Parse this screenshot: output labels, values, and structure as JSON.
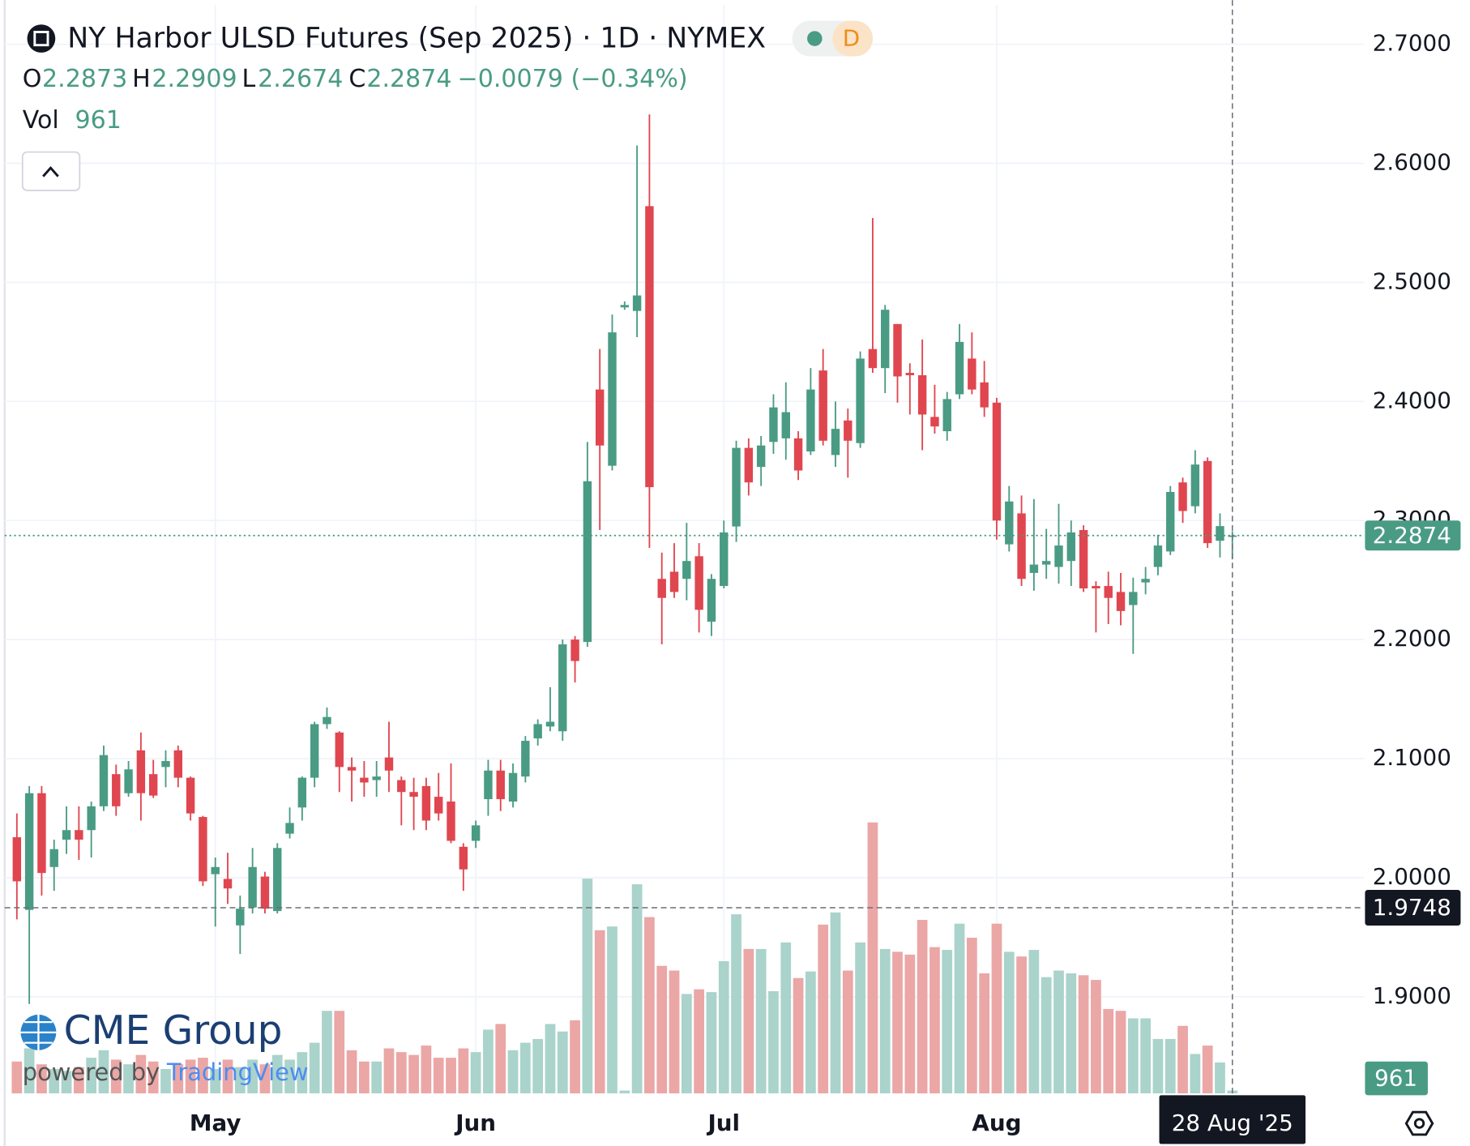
{
  "chart_data": {
    "type": "candlestick",
    "legend": {
      "symbol": "NY Harbor ULSD Futures (Sep 2025) · 1D · NYMEX",
      "interval_badge": "D",
      "o": "O",
      "h": "H",
      "l": "L",
      "c": "C",
      "change": "−0.0079 (−0.34%)",
      "vol": "Vol"
    },
    "branding": {
      "name": "CME Group",
      "powered": "powered by",
      "platform": "TradingView"
    },
    "categories": [
      null,
      null,
      null,
      null,
      null,
      null,
      null,
      null,
      null,
      null,
      null,
      null,
      null,
      null,
      null,
      null,
      "May",
      null,
      null,
      null,
      null,
      null,
      null,
      null,
      null,
      null,
      null,
      null,
      null,
      null,
      null,
      null,
      null,
      null,
      null,
      null,
      null,
      "Jun",
      null,
      null,
      null,
      null,
      null,
      null,
      null,
      null,
      null,
      null,
      null,
      null,
      null,
      null,
      null,
      null,
      null,
      null,
      null,
      "Jul",
      null,
      null,
      null,
      null,
      null,
      null,
      null,
      null,
      null,
      null,
      null,
      null,
      null,
      null,
      null,
      null,
      null,
      null,
      null,
      null,
      null,
      "Aug",
      null,
      null,
      null,
      null,
      null,
      null,
      null,
      null,
      null,
      null,
      null,
      null,
      null,
      null,
      null,
      null,
      null,
      null,
      null
    ],
    "open": [
      2.034,
      1.973,
      2.071,
      2.009,
      2.032,
      2.04,
      2.04,
      2.06,
      2.087,
      2.071,
      2.107,
      2.087,
      2.093,
      2.107,
      2.084,
      2.051,
      2.003,
      1.999,
      1.96,
      1.975,
      2.001,
      1.972,
      2.037,
      2.059,
      2.084,
      2.129,
      2.122,
      2.093,
      2.084,
      2.082,
      2.101,
      2.082,
      2.072,
      2.077,
      2.068,
      2.064,
      2.026,
      2.031,
      2.066,
      2.09,
      2.064,
      2.085,
      2.117,
      2.127,
      2.123,
      2.2,
      2.198,
      2.41,
      2.346,
      2.479,
      2.476,
      2.564,
      2.251,
      2.257,
      2.251,
      2.27,
      2.215,
      2.245,
      2.295,
      2.361,
      2.345,
      2.366,
      2.369,
      2.369,
      2.358,
      2.426,
      2.355,
      2.384,
      2.365,
      2.444,
      2.428,
      2.465,
      2.424,
      2.422,
      2.387,
      2.375,
      2.406,
      2.436,
      2.416,
      2.399,
      2.28,
      2.306,
      2.256,
      2.263,
      2.261,
      2.266,
      2.292,
      2.245,
      2.245,
      2.24,
      2.229,
      2.248,
      2.261,
      2.274,
      2.332,
      2.312,
      2.35,
      2.283,
      2.2873
    ],
    "high": [
      2.054,
      2.077,
      2.077,
      2.032,
      2.06,
      2.06,
      2.064,
      2.111,
      2.095,
      2.098,
      2.122,
      2.099,
      2.107,
      2.111,
      2.085,
      2.052,
      2.017,
      2.021,
      1.985,
      2.025,
      2.005,
      2.029,
      2.059,
      2.085,
      2.131,
      2.143,
      2.123,
      2.101,
      2.098,
      2.098,
      2.131,
      2.085,
      2.084,
      2.084,
      2.088,
      2.096,
      2.029,
      2.048,
      2.099,
      2.099,
      2.096,
      2.119,
      2.133,
      2.16,
      2.2,
      2.203,
      2.366,
      2.444,
      2.473,
      2.484,
      2.615,
      2.641,
      2.273,
      2.281,
      2.298,
      2.281,
      2.255,
      2.3,
      2.367,
      2.369,
      2.371,
      2.406,
      2.416,
      2.375,
      2.428,
      2.444,
      2.4,
      2.394,
      2.442,
      2.554,
      2.481,
      2.465,
      2.432,
      2.452,
      2.414,
      2.408,
      2.465,
      2.458,
      2.434,
      2.403,
      2.329,
      2.321,
      2.318,
      2.293,
      2.314,
      2.3,
      2.296,
      2.249,
      2.257,
      2.256,
      2.252,
      2.261,
      2.288,
      2.329,
      2.336,
      2.359,
      2.353,
      2.306,
      2.2909
    ],
    "low": [
      1.965,
      1.894,
      1.985,
      1.989,
      2.02,
      2.015,
      2.017,
      2.056,
      2.052,
      2.068,
      2.048,
      2.067,
      2.076,
      2.076,
      2.048,
      1.993,
      1.959,
      1.978,
      1.936,
      1.97,
      1.97,
      1.97,
      2.033,
      2.048,
      2.076,
      2.125,
      2.072,
      2.064,
      2.068,
      2.068,
      2.072,
      2.044,
      2.04,
      2.04,
      2.048,
      2.029,
      1.989,
      2.025,
      2.052,
      2.056,
      2.059,
      2.08,
      2.111,
      2.123,
      2.115,
      2.164,
      2.194,
      2.292,
      2.342,
      2.477,
      2.454,
      2.277,
      2.196,
      2.235,
      2.233,
      2.206,
      2.203,
      2.243,
      2.282,
      2.321,
      2.329,
      2.356,
      2.351,
      2.334,
      2.355,
      2.363,
      2.345,
      2.336,
      2.361,
      2.424,
      2.407,
      2.399,
      2.389,
      2.359,
      2.373,
      2.367,
      2.402,
      2.406,
      2.387,
      2.284,
      2.274,
      2.245,
      2.241,
      2.251,
      2.247,
      2.245,
      2.24,
      2.206,
      2.213,
      2.212,
      2.188,
      2.238,
      2.254,
      2.271,
      2.298,
      2.306,
      2.277,
      2.269,
      2.2674
    ],
    "close": [
      1.997,
      2.071,
      2.004,
      2.024,
      2.04,
      2.032,
      2.06,
      2.103,
      2.06,
      2.091,
      2.071,
      2.069,
      2.098,
      2.084,
      2.054,
      1.997,
      2.009,
      1.991,
      1.974,
      2.009,
      1.974,
      2.025,
      2.046,
      2.084,
      2.129,
      2.135,
      2.093,
      2.09,
      2.08,
      2.085,
      2.09,
      2.072,
      2.068,
      2.048,
      2.054,
      2.031,
      2.007,
      2.044,
      2.09,
      2.066,
      2.088,
      2.115,
      2.129,
      2.131,
      2.196,
      2.182,
      2.333,
      2.363,
      2.458,
      2.481,
      2.489,
      2.328,
      2.235,
      2.24,
      2.266,
      2.225,
      2.251,
      2.29,
      2.361,
      2.332,
      2.363,
      2.395,
      2.391,
      2.342,
      2.41,
      2.367,
      2.377,
      2.367,
      2.436,
      2.428,
      2.477,
      2.421,
      2.422,
      2.389,
      2.379,
      2.402,
      2.45,
      2.41,
      2.395,
      2.3,
      2.316,
      2.251,
      2.263,
      2.266,
      2.279,
      2.29,
      2.243,
      2.243,
      2.235,
      2.224,
      2.24,
      2.251,
      2.279,
      2.324,
      2.308,
      2.347,
      2.281,
      2.2953,
      2.2874
    ],
    "volume": [
      10880,
      15360,
      9920,
      8320,
      7680,
      8960,
      12160,
      14720,
      11520,
      9920,
      13120,
      10880,
      8320,
      9920,
      11520,
      12160,
      8320,
      11520,
      8960,
      11520,
      9920,
      13120,
      11520,
      14080,
      17280,
      28160,
      28160,
      14720,
      10880,
      10880,
      15360,
      14080,
      13120,
      16320,
      12160,
      12160,
      15360,
      14080,
      21760,
      23680,
      14720,
      17280,
      18560,
      23680,
      21120,
      24960,
      73280,
      55680,
      56960,
      960,
      71360,
      60160,
      43520,
      41920,
      33920,
      35520,
      34560,
      45120,
      61120,
      49280,
      49280,
      34880,
      51520,
      39360,
      41600,
      57600,
      61760,
      41920,
      51520,
      92480,
      49280,
      48320,
      47360,
      59200,
      49920,
      48960,
      57920,
      53120,
      40960,
      57920,
      48320,
      46720,
      48960,
      39680,
      41920,
      40960,
      40320,
      38720,
      28800,
      28160,
      25600,
      25600,
      18560,
      18560,
      23040,
      13440,
      16320,
      10560,
      961
    ],
    "ylim": [
      1.8189,
      2.7331
    ],
    "yticks": [
      {
        "value": 1.9,
        "label": "1.9000"
      },
      {
        "value": 2.0,
        "label": "2.0000"
      },
      {
        "value": 2.1,
        "label": "2.1000"
      },
      {
        "value": 2.2,
        "label": "2.2000"
      },
      {
        "value": 2.3,
        "label": "2.3000"
      },
      {
        "value": 2.4,
        "label": "2.4000"
      },
      {
        "value": 2.5,
        "label": "2.5000"
      },
      {
        "value": 2.6,
        "label": "2.6000"
      },
      {
        "value": 2.7,
        "label": "2.7000"
      }
    ],
    "volume_ylim": [
      0,
      371520
    ],
    "grid": true,
    "up_color": "#4a9b84",
    "down_color": "#e0464f",
    "volume_up_color": "#a9d3cb",
    "volume_down_color": "#eba6a6",
    "crosshair": {
      "price": {
        "value": 1.9748,
        "label": "1.9748"
      },
      "x_label": "28 Aug '25"
    }
  }
}
